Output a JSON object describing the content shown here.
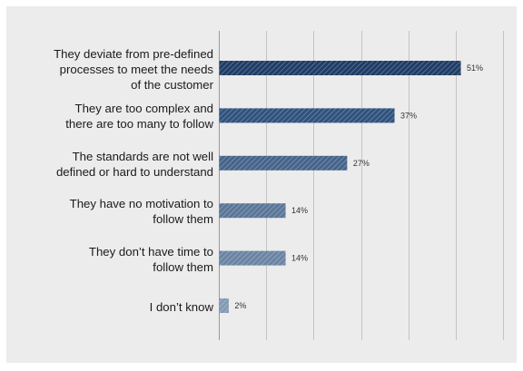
{
  "chart_data": {
    "type": "bar",
    "orientation": "horizontal",
    "categories": [
      "They deviate from pre-defined processes to meet the needs of the customer",
      "They are too complex and there are too many to follow",
      "The standards are not well defined or hard to understand",
      "They have no motivation to follow them",
      "They don’t have time to follow them",
      "I don’t know"
    ],
    "category_lines": [
      [
        "They deviate from pre-defined",
        "processes to meet the needs",
        "of the customer"
      ],
      [
        "They are too complex and",
        "there are too many to follow"
      ],
      [
        "The standards are not well",
        "defined or hard to understand"
      ],
      [
        "They have no motivation to",
        "follow them"
      ],
      [
        "They don’t have time to",
        "follow them"
      ],
      [
        "I don’t know"
      ]
    ],
    "values": [
      51,
      37,
      27,
      14,
      14,
      2
    ],
    "value_labels": [
      "51%",
      "37%",
      "27%",
      "14%",
      "14%",
      "2%"
    ],
    "xlim": [
      0,
      60
    ],
    "grid": true,
    "legend": "none",
    "colors": [
      "#1f3d66",
      "#2f527e",
      "#46648a",
      "#5a7698",
      "#6a84a3",
      "#8299b4"
    ]
  }
}
